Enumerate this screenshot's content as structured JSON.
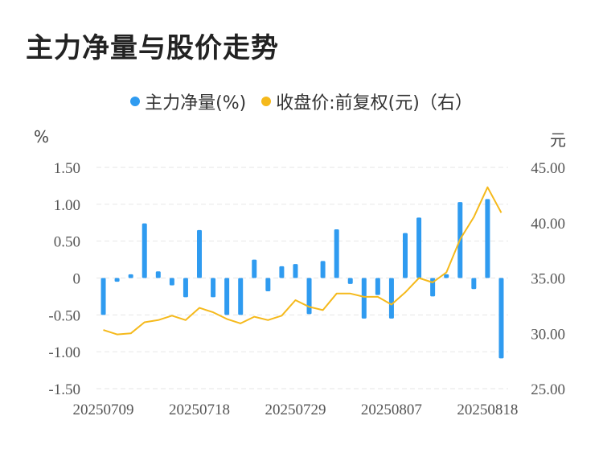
{
  "title": "主力净量与股价走势",
  "legend": [
    {
      "name": "主力净量(%)",
      "color": "#2f9bf0"
    },
    {
      "name": "收盘价:前复权(元)（右）",
      "color": "#f5b91b"
    }
  ],
  "colors": {
    "bar": "#2f9bf0",
    "line": "#f5b91b",
    "grid": "#e6e6e6"
  },
  "chart_data": {
    "type": "bar",
    "title": "主力净量与股价走势",
    "left_unit": "%",
    "right_unit": "元",
    "ylim_left": [
      -1.5,
      1.5
    ],
    "ylim_right": [
      25,
      45
    ],
    "yticks_left": [
      "1.50",
      "1.00",
      "0.50",
      "0",
      "-0.50",
      "-1.00",
      "-1.50"
    ],
    "yticks_right": [
      "45.00",
      "40.00",
      "35.00",
      "30.00",
      "25.00"
    ],
    "xtick_labels": [
      "20250709",
      "20250718",
      "20250729",
      "20250807",
      "20250818"
    ],
    "xtick_index": [
      0,
      7,
      14,
      21,
      28
    ],
    "grid": true,
    "legend_position": "top",
    "series": [
      {
        "name": "主力净量(%)",
        "type": "bar",
        "axis": "left",
        "values": [
          -0.5,
          -0.05,
          0.05,
          0.74,
          0.09,
          -0.1,
          -0.26,
          0.65,
          -0.26,
          -0.5,
          -0.5,
          0.25,
          -0.18,
          0.16,
          0.19,
          -0.49,
          0.23,
          0.66,
          -0.08,
          -0.55,
          -0.23,
          -0.55,
          0.61,
          0.82,
          -0.25,
          0.05,
          1.03,
          -0.15,
          1.07,
          -1.09
        ]
      },
      {
        "name": "收盘价:前复权(元)（右）",
        "type": "line",
        "axis": "right",
        "values": [
          30.3,
          29.9,
          30.0,
          31.0,
          31.2,
          31.6,
          31.2,
          32.3,
          31.9,
          31.3,
          30.9,
          31.5,
          31.2,
          31.6,
          33.0,
          32.4,
          32.1,
          33.6,
          33.6,
          33.3,
          33.3,
          32.6,
          33.7,
          35.0,
          34.6,
          35.5,
          38.5,
          40.5,
          43.2,
          40.9
        ]
      }
    ]
  }
}
